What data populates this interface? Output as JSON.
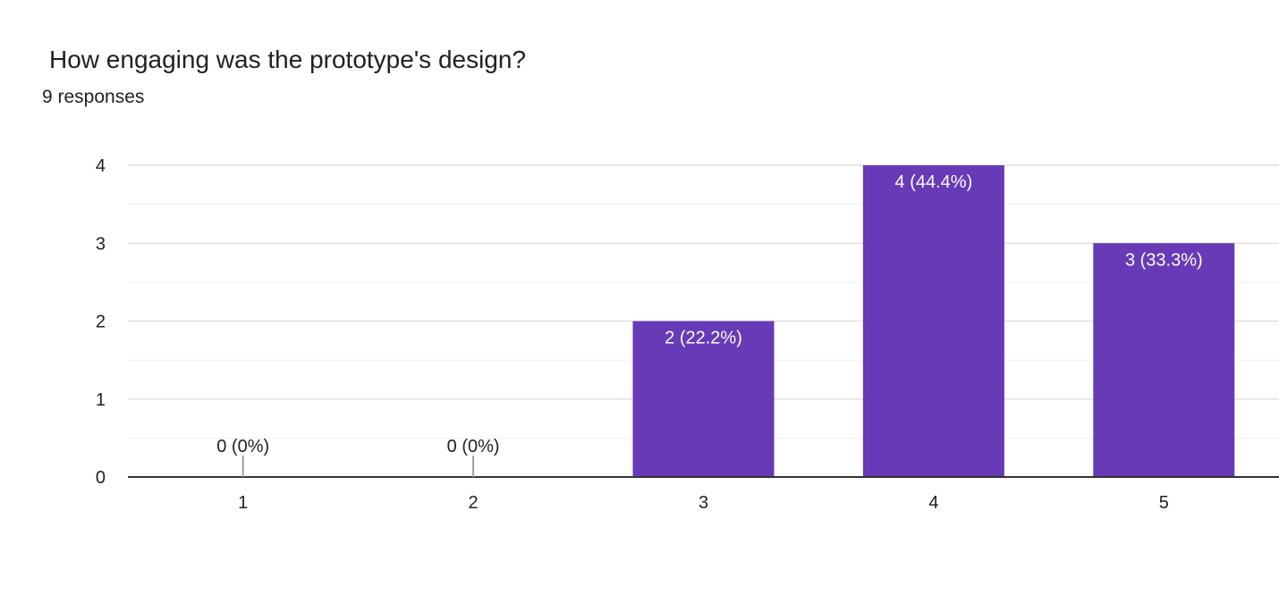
{
  "question": {
    "title": "How engaging was the prototype's design?",
    "responses": "9 responses"
  },
  "chart_data": {
    "type": "bar",
    "categories": [
      "1",
      "2",
      "3",
      "4",
      "5"
    ],
    "values": [
      0,
      0,
      2,
      4,
      3
    ],
    "data_labels": [
      "0 (0%)",
      "0 (0%)",
      "2 (22.2%)",
      "4 (44.4%)",
      "3 (33.3%)"
    ],
    "y_ticks": [
      "0",
      "1",
      "2",
      "3",
      "4"
    ],
    "ylim": [
      0,
      4
    ],
    "grid": true,
    "legend": "none",
    "bar_color": "#673ab7"
  }
}
